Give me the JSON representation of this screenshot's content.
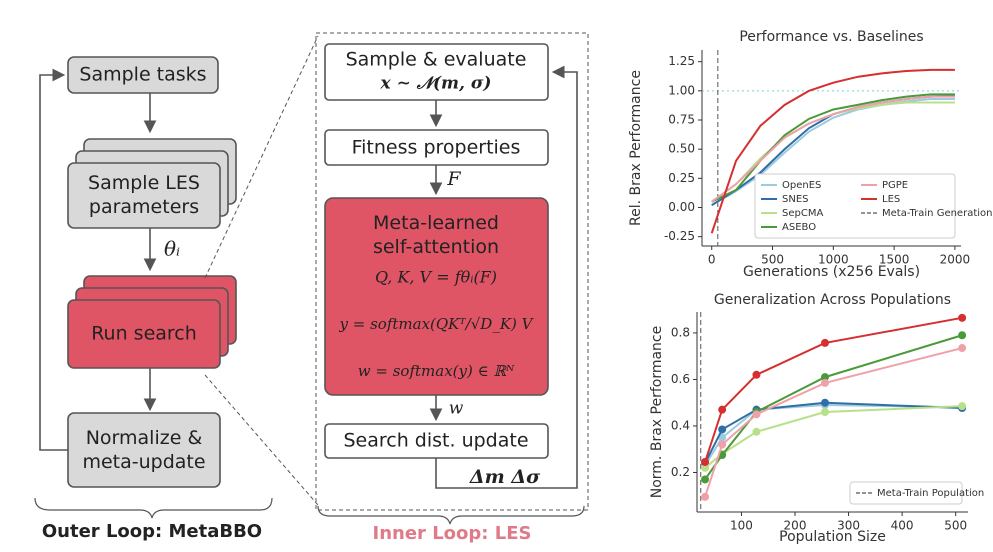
{
  "diagram": {
    "outer": {
      "sample_tasks": "Sample tasks",
      "sample_params": "Sample LES parameters",
      "theta": "θᵢ",
      "run_search": "Run search",
      "normalize": "Normalize & meta-update",
      "caption": "Outer Loop: MetaBBO"
    },
    "inner": {
      "sample_eval": "Sample & evaluate",
      "sample_eval_math": "x ∼ 𝒩(m, σ)",
      "fitness": "Fitness properties",
      "F": "F",
      "attention": "Meta-learned self-attention",
      "eq1": "Q, K, V = fθᵢ(F)",
      "eq2": "y = softmax(QKᵀ/√D_K) V",
      "eq3": "w = softmax(y) ∈ ℝᴺ",
      "w": "w",
      "update": "Search dist. update",
      "delta": "Δm Δσ",
      "caption": "Inner Loop: LES"
    }
  },
  "chart_data": [
    {
      "type": "line",
      "title": "Performance vs. Baselines",
      "x_label": "Generations (x256 Evals)",
      "y_label": "Rel. Brax Performance",
      "x": [
        0,
        200,
        400,
        600,
        800,
        1000,
        1200,
        1400,
        1600,
        1800,
        2000
      ],
      "series": [
        {
          "name": "OpenES",
          "color": "#9ccbe0",
          "values": [
            0.02,
            0.14,
            0.28,
            0.47,
            0.65,
            0.77,
            0.84,
            0.88,
            0.91,
            0.93,
            0.93
          ]
        },
        {
          "name": "SNES",
          "color": "#2f6fa7",
          "values": [
            0.02,
            0.15,
            0.3,
            0.5,
            0.68,
            0.8,
            0.86,
            0.9,
            0.93,
            0.95,
            0.96
          ]
        },
        {
          "name": "SepCMA",
          "color": "#b8e08a",
          "values": [
            0.05,
            0.2,
            0.42,
            0.6,
            0.72,
            0.8,
            0.85,
            0.88,
            0.9,
            0.9,
            0.9
          ]
        },
        {
          "name": "ASEBO",
          "color": "#4a9a3a",
          "values": [
            0.05,
            0.15,
            0.4,
            0.62,
            0.76,
            0.84,
            0.88,
            0.92,
            0.95,
            0.97,
            0.97
          ]
        },
        {
          "name": "PGPE",
          "color": "#f0a0a8",
          "values": [
            0.05,
            0.2,
            0.4,
            0.6,
            0.72,
            0.8,
            0.86,
            0.9,
            0.93,
            0.95,
            0.95
          ]
        },
        {
          "name": "LES",
          "color": "#d62f2f",
          "values": [
            -0.22,
            0.4,
            0.7,
            0.88,
            1.0,
            1.07,
            1.12,
            1.15,
            1.17,
            1.18,
            1.18
          ]
        }
      ],
      "vline": {
        "x": 50,
        "name": "Meta-Train Generations"
      },
      "hline": 1,
      "xlim": [
        -80,
        2050
      ],
      "ylim": [
        -0.33,
        1.35
      ],
      "xticks": [
        0,
        500,
        1000,
        1500,
        2000
      ],
      "yticks": [
        -0.25,
        {
          "value": 0,
          "label": "0.00"
        },
        0.25,
        {
          "value": 0.5,
          "label": "0.50"
        },
        0.75,
        {
          "value": 1,
          "label": "1.00"
        },
        1.25
      ],
      "grid": false,
      "legend": "lower right",
      "markers": false
    },
    {
      "type": "line",
      "title": "Generalization Across Populations",
      "x_label": "Population Size",
      "y_label": "Norm. Brax Performance",
      "x": [
        32,
        64,
        128,
        256,
        512
      ],
      "series": [
        {
          "name": "OpenES",
          "color": "#9ccbe0",
          "values": [
            0.23,
            0.35,
            0.47,
            0.49,
            0.48
          ]
        },
        {
          "name": "SNES",
          "color": "#2f6fa7",
          "values": [
            0.24,
            0.385,
            0.47,
            0.5,
            0.477
          ]
        },
        {
          "name": "SepCMA",
          "color": "#b8e08a",
          "values": [
            0.22,
            0.28,
            0.375,
            0.46,
            0.485
          ]
        },
        {
          "name": "ASEBO",
          "color": "#4a9a3a",
          "values": [
            0.17,
            0.275,
            0.46,
            0.61,
            0.79
          ]
        },
        {
          "name": "PGPE",
          "color": "#f0a0a8",
          "values": [
            0.095,
            0.32,
            0.45,
            0.585,
            0.735
          ]
        },
        {
          "name": "LES",
          "color": "#d62f2f",
          "values": [
            0.245,
            0.47,
            0.62,
            0.757,
            0.865
          ]
        }
      ],
      "vline": {
        "x": 24,
        "name": "Meta-Train Population"
      },
      "xlim": [
        17,
        523
      ],
      "ylim": [
        0.03,
        0.89
      ],
      "xticks": [
        100,
        200,
        300,
        400,
        500
      ],
      "yticks": [
        0.2,
        0.4,
        0.6,
        0.8
      ],
      "grid": false,
      "legend": "lower right",
      "markers": true
    }
  ]
}
